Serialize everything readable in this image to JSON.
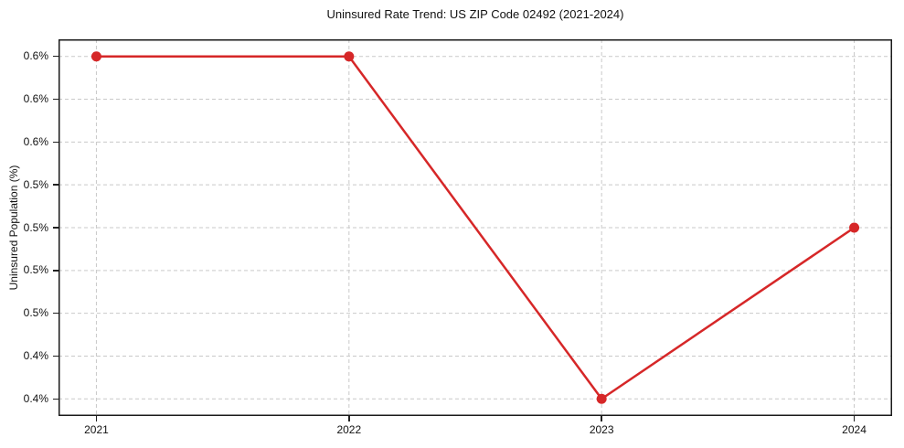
{
  "chart_data": {
    "type": "line",
    "title": "Uninsured Rate Trend: US ZIP Code 02492 (2021-2024)",
    "xlabel": "",
    "ylabel": "Uninsured Population (%)",
    "x": [
      2021,
      2022,
      2023,
      2024
    ],
    "xtick_labels": [
      "2021",
      "2022",
      "2023",
      "2024"
    ],
    "values": [
      0.6,
      0.6,
      0.4,
      0.5
    ],
    "series_name": "Uninsured Rate",
    "yticks": [
      0.6,
      0.575,
      0.55,
      0.525,
      0.5,
      0.475,
      0.45,
      0.425,
      0.4
    ],
    "ytick_labels": [
      "0.6%",
      "0.6%",
      "0.6%",
      "0.5%",
      "0.5%",
      "0.5%",
      "0.5%",
      "0.4%",
      "0.4%"
    ],
    "xlim": [
      2020.85,
      2024.15
    ],
    "ylim": [
      0.39,
      0.61
    ],
    "grid": true,
    "grid_style": "dashed",
    "legend": "none",
    "line_color": "#d62728",
    "marker": "circle",
    "marker_color": "#d62728",
    "background_color": "#ffffff"
  }
}
